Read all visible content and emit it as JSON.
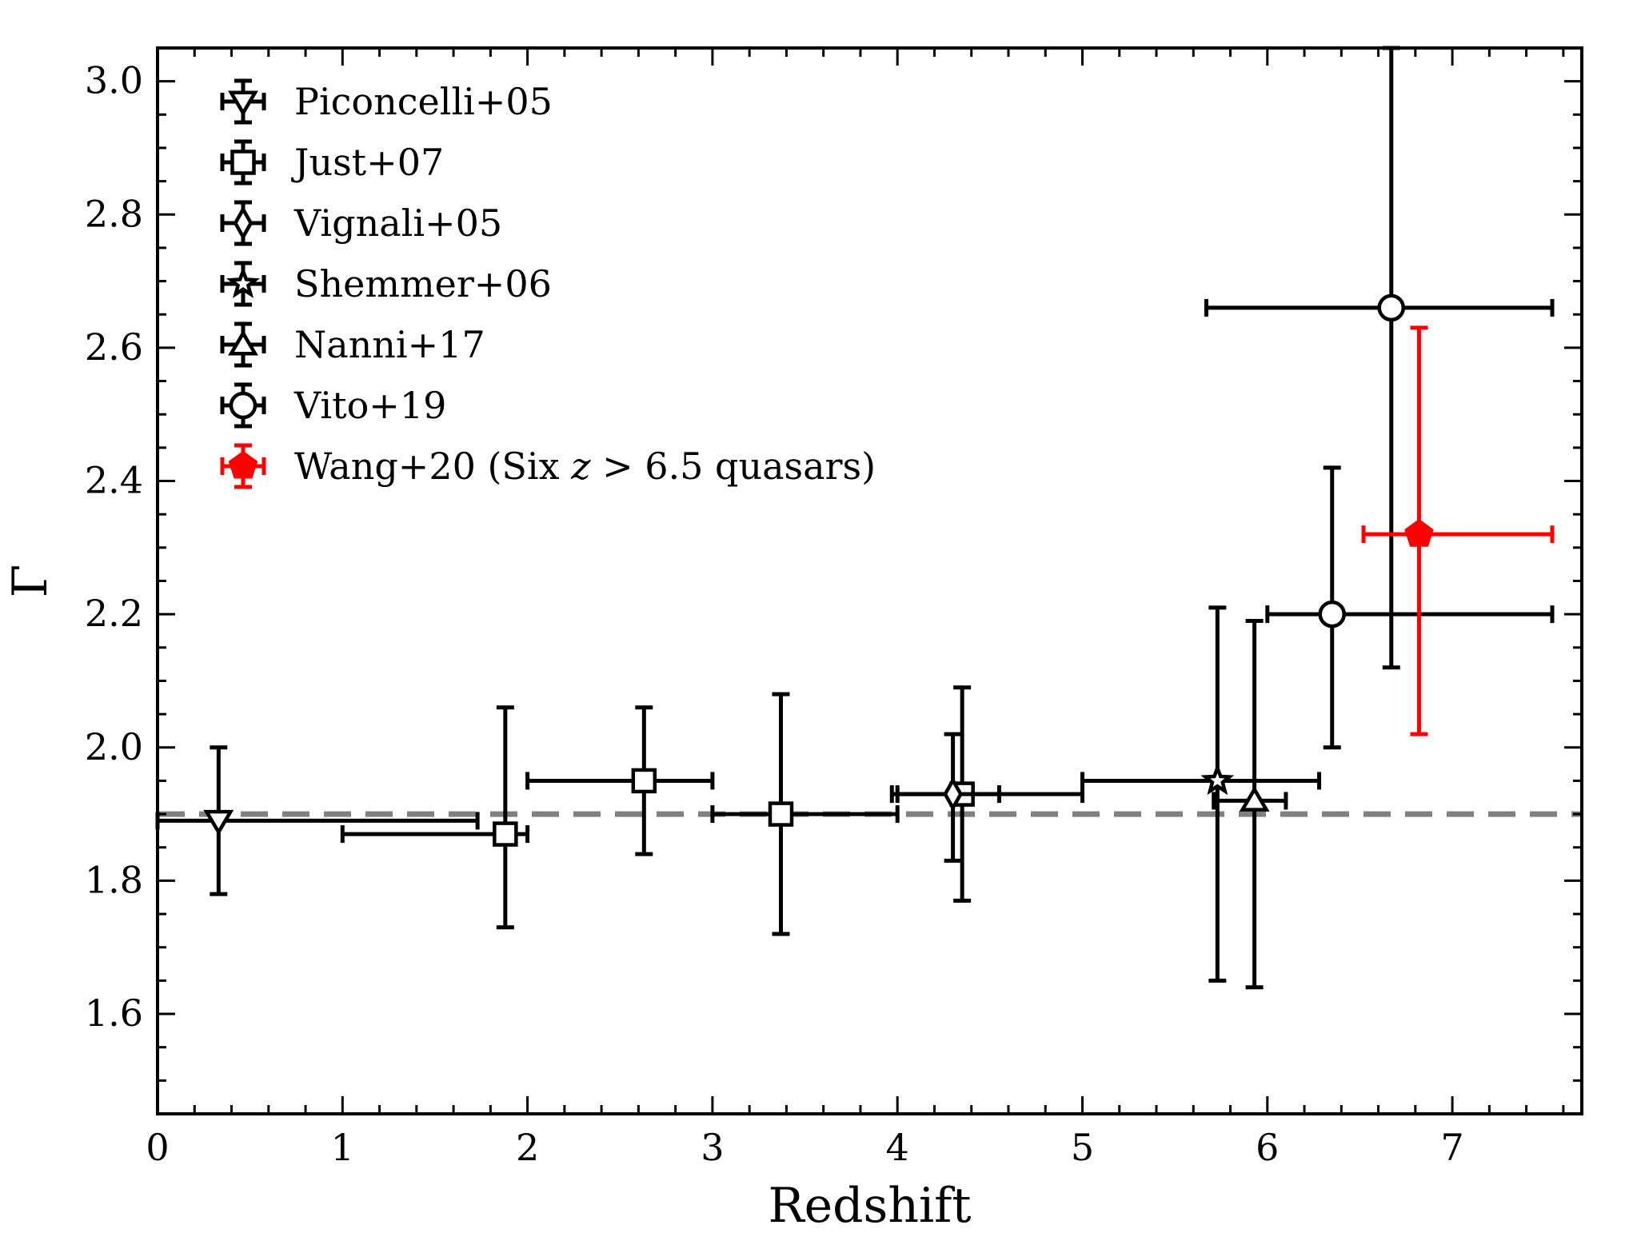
{
  "chart_data": {
    "type": "scatter",
    "title": "",
    "xlabel": "Redshift",
    "ylabel": "Γ",
    "xlim": [
      0,
      7.7
    ],
    "ylim": [
      1.45,
      3.05
    ],
    "x_ticks": [
      0,
      1,
      2,
      3,
      4,
      5,
      6,
      7
    ],
    "x_tick_labels": [
      "0",
      "1",
      "2",
      "3",
      "4",
      "5",
      "6",
      "7"
    ],
    "y_ticks": [
      1.6,
      1.8,
      2.0,
      2.2,
      2.4,
      2.6,
      2.8,
      3.0
    ],
    "y_tick_labels": [
      "1.6",
      "1.8",
      "2.0",
      "2.2",
      "2.4",
      "2.6",
      "2.8",
      "3.0"
    ],
    "legend_placement": "top-left",
    "reference_line": {
      "y": 1.9,
      "style": "dashed",
      "color": "#808080"
    },
    "series": [
      {
        "name": "Piconcelli+05",
        "marker": "triangle-down",
        "color": "#000000",
        "fill": "#ffffff",
        "points": [
          {
            "x": 0.33,
            "xlo": 0.0,
            "xhi": 1.73,
            "y": 1.89,
            "ylo": 1.78,
            "yhi": 2.0
          }
        ]
      },
      {
        "name": "Just+07",
        "marker": "square",
        "color": "#000000",
        "fill": "#ffffff",
        "points": [
          {
            "x": 1.88,
            "xlo": 1.0,
            "xhi": 2.0,
            "y": 1.87,
            "ylo": 1.73,
            "yhi": 2.06
          },
          {
            "x": 2.63,
            "xlo": 2.0,
            "xhi": 3.0,
            "y": 1.95,
            "ylo": 1.84,
            "yhi": 2.06
          },
          {
            "x": 3.37,
            "xlo": 3.0,
            "xhi": 4.0,
            "y": 1.9,
            "ylo": 1.72,
            "yhi": 2.08
          },
          {
            "x": 4.35,
            "xlo": 4.0,
            "xhi": 5.0,
            "y": 1.93,
            "ylo": 1.77,
            "yhi": 2.09
          }
        ]
      },
      {
        "name": "Vignali+05",
        "marker": "diamond",
        "color": "#000000",
        "fill": "#ffffff",
        "points": [
          {
            "x": 4.3,
            "xlo": 3.97,
            "xhi": 4.55,
            "y": 1.93,
            "ylo": 1.83,
            "yhi": 2.02
          }
        ]
      },
      {
        "name": "Shemmer+06",
        "marker": "star",
        "color": "#000000",
        "fill": "#ffffff",
        "points": [
          {
            "x": 5.73,
            "xlo": 5.0,
            "xhi": 6.28,
            "y": 1.95,
            "ylo": 1.65,
            "yhi": 2.21
          }
        ]
      },
      {
        "name": "Nanni+17",
        "marker": "triangle-up",
        "color": "#000000",
        "fill": "#ffffff",
        "points": [
          {
            "x": 5.93,
            "xlo": 5.71,
            "xhi": 6.1,
            "y": 1.92,
            "ylo": 1.64,
            "yhi": 2.19
          }
        ]
      },
      {
        "name": "Vito+19",
        "marker": "circle",
        "color": "#000000",
        "fill": "#ffffff",
        "points": [
          {
            "x": 6.35,
            "xlo": 6.0,
            "xhi": 7.54,
            "y": 2.2,
            "ylo": 2.0,
            "yhi": 2.42
          },
          {
            "x": 6.67,
            "xlo": 5.67,
            "xhi": 7.54,
            "y": 2.66,
            "ylo": 2.12,
            "yhi": 3.05
          }
        ]
      },
      {
        "name": "Wang+20 (Six ",
        "name_italic": "z",
        "name_suffix": " > 6.5 quasars)",
        "marker": "pentagon",
        "color": "#ff0000",
        "fill": "#ff0000",
        "points": [
          {
            "x": 6.82,
            "xlo": 6.52,
            "xhi": 7.54,
            "y": 2.32,
            "ylo": 2.02,
            "yhi": 2.63
          }
        ]
      }
    ]
  }
}
